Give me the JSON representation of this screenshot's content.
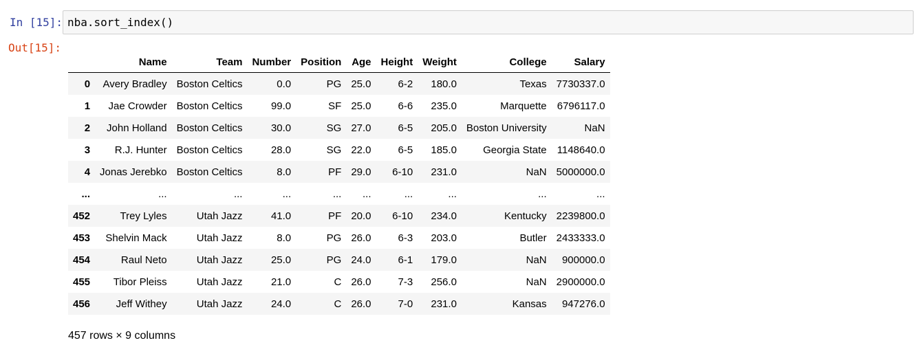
{
  "input_cell": {
    "prompt": "In [15]:",
    "code": "nba.sort_index()"
  },
  "output_cell": {
    "prompt": "Out[15]:",
    "columns": [
      "",
      "Name",
      "Team",
      "Number",
      "Position",
      "Age",
      "Height",
      "Weight",
      "College",
      "Salary"
    ],
    "rows": [
      [
        "0",
        "Avery Bradley",
        "Boston Celtics",
        "0.0",
        "PG",
        "25.0",
        "6-2",
        "180.0",
        "Texas",
        "7730337.0"
      ],
      [
        "1",
        "Jae Crowder",
        "Boston Celtics",
        "99.0",
        "SF",
        "25.0",
        "6-6",
        "235.0",
        "Marquette",
        "6796117.0"
      ],
      [
        "2",
        "John Holland",
        "Boston Celtics",
        "30.0",
        "SG",
        "27.0",
        "6-5",
        "205.0",
        "Boston University",
        "NaN"
      ],
      [
        "3",
        "R.J. Hunter",
        "Boston Celtics",
        "28.0",
        "SG",
        "22.0",
        "6-5",
        "185.0",
        "Georgia State",
        "1148640.0"
      ],
      [
        "4",
        "Jonas Jerebko",
        "Boston Celtics",
        "8.0",
        "PF",
        "29.0",
        "6-10",
        "231.0",
        "NaN",
        "5000000.0"
      ],
      [
        "...",
        "...",
        "...",
        "...",
        "...",
        "...",
        "...",
        "...",
        "...",
        "..."
      ],
      [
        "452",
        "Trey Lyles",
        "Utah Jazz",
        "41.0",
        "PF",
        "20.0",
        "6-10",
        "234.0",
        "Kentucky",
        "2239800.0"
      ],
      [
        "453",
        "Shelvin Mack",
        "Utah Jazz",
        "8.0",
        "PG",
        "26.0",
        "6-3",
        "203.0",
        "Butler",
        "2433333.0"
      ],
      [
        "454",
        "Raul Neto",
        "Utah Jazz",
        "25.0",
        "PG",
        "24.0",
        "6-1",
        "179.0",
        "NaN",
        "900000.0"
      ],
      [
        "455",
        "Tibor Pleiss",
        "Utah Jazz",
        "21.0",
        "C",
        "26.0",
        "7-3",
        "256.0",
        "NaN",
        "2900000.0"
      ],
      [
        "456",
        "Jeff Withey",
        "Utah Jazz",
        "24.0",
        "C",
        "26.0",
        "7-0",
        "231.0",
        "Kansas",
        "947276.0"
      ]
    ],
    "summary": "457 rows × 9 columns"
  }
}
